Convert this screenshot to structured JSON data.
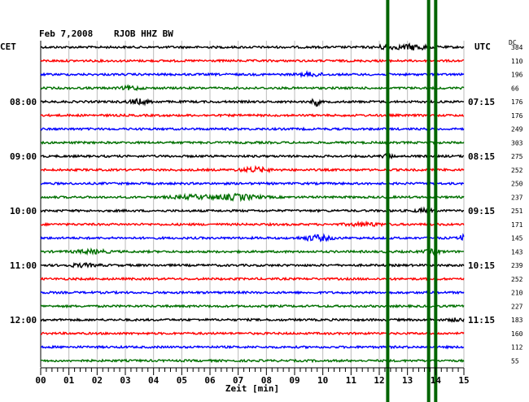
{
  "header": {
    "date": "Feb 7,2008",
    "station": "RJOB HHZ BW",
    "left_timezone": "CET",
    "right_timezone": "UTC",
    "dc_label": "DC"
  },
  "colors": {
    "trace_cycle": [
      "#000000",
      "#ff0000",
      "#0000ff",
      "#007000"
    ],
    "event_marker": "#006400",
    "grid": "#000000",
    "background": "#ffffff"
  },
  "chart_data": {
    "type": "line",
    "title": "Feb 7,2008   RJOB HHZ BW",
    "xlabel": "Zeit [min]",
    "x_range": [
      0,
      15
    ],
    "x_tick_labels": [
      "00",
      "01",
      "02",
      "03",
      "04",
      "05",
      "06",
      "07",
      "08",
      "09",
      "10",
      "11",
      "12",
      "13",
      "14",
      "15"
    ],
    "row_count": 24,
    "minutes_per_row": 15,
    "left_time_labels": [
      {
        "row": 4,
        "text": "08:00"
      },
      {
        "row": 8,
        "text": "09:00"
      },
      {
        "row": 12,
        "text": "10:00"
      },
      {
        "row": 16,
        "text": "11:00"
      },
      {
        "row": 20,
        "text": "12:00"
      }
    ],
    "right_time_labels": [
      {
        "row": 4,
        "text": "07:15"
      },
      {
        "row": 8,
        "text": "08:15"
      },
      {
        "row": 12,
        "text": "09:15"
      },
      {
        "row": 16,
        "text": "10:15"
      },
      {
        "row": 20,
        "text": "11:15"
      }
    ],
    "dc_offsets": [
      "384",
      "110",
      "196",
      "66",
      "176",
      "176",
      "249",
      "303",
      "275",
      "252",
      "250",
      "237",
      "251",
      "171",
      "145",
      "143",
      "239",
      "252",
      "210",
      "227",
      "183",
      "160",
      "112",
      "55"
    ],
    "event_markers_min": [
      12.3,
      13.75,
      14.0
    ],
    "bursts": [
      {
        "row": 0,
        "min": 13.2,
        "amplitude": 3.0,
        "width": 0.6
      },
      {
        "row": 0,
        "min": 12.2,
        "amplitude": 2.0,
        "width": 0.3
      },
      {
        "row": 2,
        "min": 9.6,
        "amplitude": 2.0,
        "width": 0.4
      },
      {
        "row": 3,
        "min": 3.2,
        "amplitude": 2.2,
        "width": 0.3
      },
      {
        "row": 4,
        "min": 3.5,
        "amplitude": 2.5,
        "width": 0.4
      },
      {
        "row": 4,
        "min": 9.75,
        "amplitude": 5.0,
        "width": 0.12
      },
      {
        "row": 8,
        "min": 12.3,
        "amplitude": 2.0,
        "width": 0.2
      },
      {
        "row": 9,
        "min": 7.6,
        "amplitude": 2.5,
        "width": 0.5
      },
      {
        "row": 11,
        "min": 5.5,
        "amplitude": 2.0,
        "width": 0.8
      },
      {
        "row": 11,
        "min": 7.0,
        "amplitude": 3.0,
        "width": 0.7
      },
      {
        "row": 12,
        "min": 13.6,
        "amplitude": 2.0,
        "width": 0.3
      },
      {
        "row": 13,
        "min": 11.5,
        "amplitude": 1.8,
        "width": 0.6
      },
      {
        "row": 14,
        "min": 9.8,
        "amplitude": 3.0,
        "width": 0.5
      },
      {
        "row": 14,
        "min": 14.95,
        "amplitude": 3.5,
        "width": 0.1
      },
      {
        "row": 15,
        "min": 1.8,
        "amplitude": 1.8,
        "width": 0.6
      },
      {
        "row": 15,
        "min": 13.9,
        "amplitude": 2.0,
        "width": 0.3
      },
      {
        "row": 16,
        "min": 1.5,
        "amplitude": 1.6,
        "width": 0.5
      },
      {
        "row": 20,
        "min": 14.8,
        "amplitude": 1.5,
        "width": 0.3
      }
    ]
  }
}
